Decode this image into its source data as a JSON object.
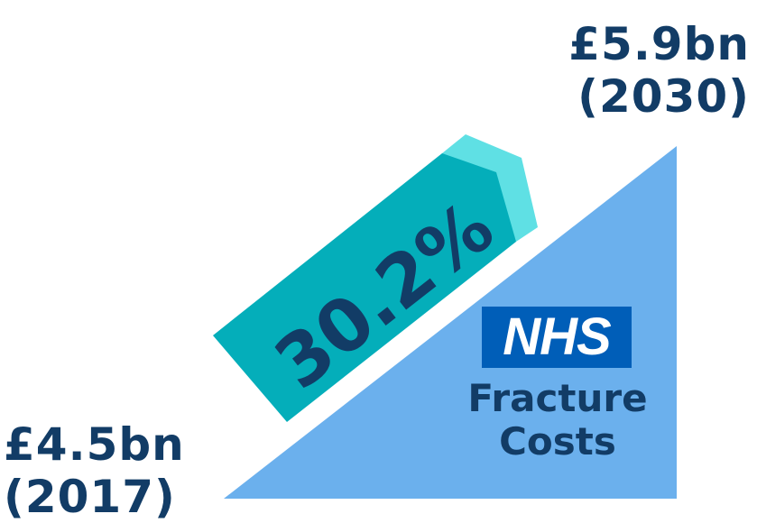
{
  "end_value": {
    "amount": "£5.9bn",
    "year": "(2030)"
  },
  "start_value": {
    "amount": "£4.5bn",
    "year": "(2017)"
  },
  "increase_tag": {
    "label": "30.2%"
  },
  "logo": {
    "text": "NHS"
  },
  "caption": {
    "line1": "Fracture",
    "line2": "Costs"
  },
  "colors": {
    "triangle": "#6bb0ed",
    "tag_body": "#04aeba",
    "tag_highlight": "#5fe0e4",
    "text": "#123c66",
    "nhs_blue": "#005eb8"
  }
}
